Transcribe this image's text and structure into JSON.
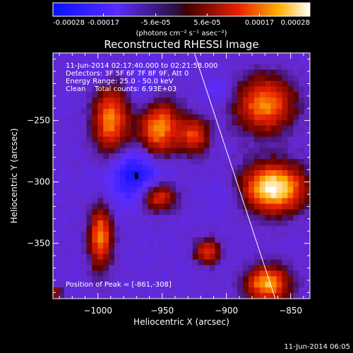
{
  "chart_data": {
    "type": "heatmap",
    "title": "Reconstructed RHESSI Image",
    "xlabel": "Heliocentric X (arcsec)",
    "ylabel": "Heliocentric Y (arcsec)",
    "xlim": [
      -1035,
      -835
    ],
    "ylim": [
      -395,
      -195
    ],
    "x_ticks": [
      -1000,
      -950,
      -900,
      -850
    ],
    "x_tick_labels": [
      "−1000",
      "−950",
      "−900",
      "−850"
    ],
    "y_ticks": [
      -250,
      -300,
      -350
    ],
    "y_tick_labels": [
      "−250",
      "−300",
      "−350"
    ],
    "colorbar": {
      "range": [
        -0.00028,
        0.00028
      ],
      "tick_values": [
        -0.00028,
        -0.00017,
        -5.6e-05,
        5.6e-05,
        0.00017,
        0.00028
      ],
      "tick_labels": [
        "-0.00028",
        "-0.00017",
        "-5.6e-05",
        "5.6e-05",
        "0.00017",
        "0.00028"
      ],
      "units_label": "(photons cm⁻² s⁻¹ asec⁻²)"
    },
    "annotations": [
      "11-Jun-2014 02:17:40.000 to 02:21:58.000",
      "Detectors: 3F 5F 6F 7F 8F 9F, Att 0",
      "Energy Range: 25.0 - 50.0 keV",
      "Clean    Total counts: 6.93E+03"
    ],
    "peak_label": "Position of Peak = [-861,-308]",
    "peak": {
      "x": -861,
      "y": -308
    },
    "limb_line": [
      [
        -925,
        -195
      ],
      [
        -862,
        -395
      ]
    ],
    "bright_sources": [
      {
        "x": -990,
        "y": -250,
        "rx": 14,
        "ry": 28,
        "value": 0.00019
      },
      {
        "x": -953,
        "y": -255,
        "rx": 16,
        "ry": 25,
        "value": 0.00022
      },
      {
        "x": -953,
        "y": -312,
        "rx": 14,
        "ry": 12,
        "value": 0.00016
      },
      {
        "x": -925,
        "y": -262,
        "rx": 12,
        "ry": 15,
        "value": 0.00013
      },
      {
        "x": -870,
        "y": -237,
        "rx": 23,
        "ry": 23,
        "value": 0.00019
      },
      {
        "x": -863,
        "y": -305,
        "rx": 25,
        "ry": 20,
        "value": 0.00028
      },
      {
        "x": -998,
        "y": -345,
        "rx": 9,
        "ry": 25,
        "value": 0.00019
      },
      {
        "x": -915,
        "y": -357,
        "rx": 10,
        "ry": 10,
        "value": 0.00013
      },
      {
        "x": -868,
        "y": -383,
        "rx": 17,
        "ry": 15,
        "value": 0.00022
      },
      {
        "x": -1033,
        "y": -390,
        "rx": 5,
        "ry": 5,
        "value": 8e-05
      }
    ],
    "negative_regions": [
      {
        "x": -970,
        "y": -295,
        "rx": 22,
        "ry": 22,
        "value": -0.00026
      },
      {
        "x": -960,
        "y": -230,
        "rx": 15,
        "ry": 25,
        "value": -0.00017
      },
      {
        "x": -905,
        "y": -225,
        "rx": 12,
        "ry": 12,
        "value": -0.00014
      },
      {
        "x": -900,
        "y": -310,
        "rx": 15,
        "ry": 15,
        "value": -0.00012
      },
      {
        "x": -1000,
        "y": -210,
        "rx": 12,
        "ry": 10,
        "value": -0.00012
      }
    ],
    "background_value": -8e-05
  },
  "footer_timestamp": "11-Jun-2014 06:05"
}
